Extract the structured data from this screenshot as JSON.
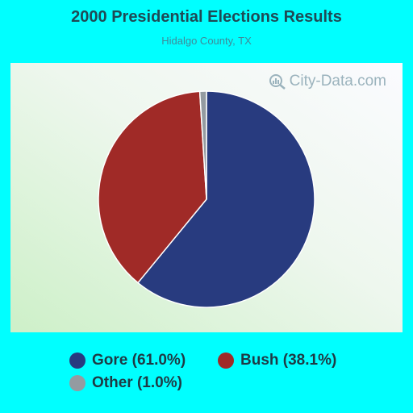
{
  "watermark": {
    "text": "City-Data.com",
    "icon": "magnifier-chart-icon"
  },
  "chart_data": {
    "type": "pie",
    "title": "2000 Presidential Elections Results",
    "subtitle": "Hidalgo County, TX",
    "slices": [
      {
        "label": "Gore",
        "value": 61.0,
        "legend": "Gore (61.0%)",
        "color": "#283b7f"
      },
      {
        "label": "Bush",
        "value": 38.1,
        "legend": "Bush (38.1%)",
        "color": "#a02a27"
      },
      {
        "label": "Other",
        "value": 1.0,
        "legend": "Other (1.0%)",
        "color": "#949ba1"
      }
    ],
    "start": "top",
    "direction": "clockwise",
    "legend_position": "bottom"
  }
}
